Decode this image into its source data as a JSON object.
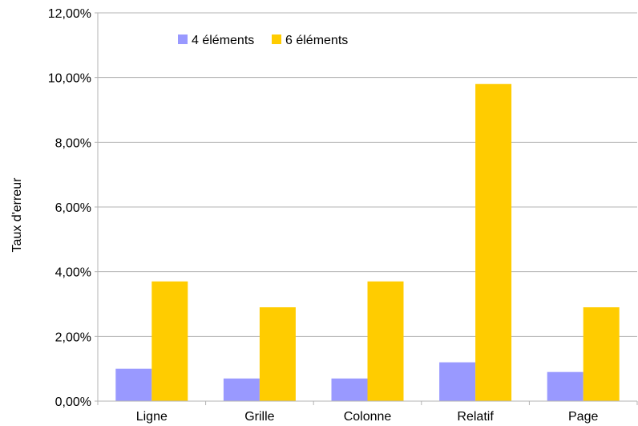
{
  "chart_data": {
    "type": "bar",
    "categories": [
      "Ligne",
      "Grille",
      "Colonne",
      "Relatif",
      "Page"
    ],
    "series": [
      {
        "name": "4 éléments",
        "values": [
          1.0,
          0.7,
          0.7,
          1.2,
          0.9
        ],
        "color": "#9999ff"
      },
      {
        "name": "6 éléments",
        "values": [
          3.7,
          2.9,
          3.7,
          9.8,
          2.9
        ],
        "color": "#ffcc00"
      }
    ],
    "title": "",
    "xlabel": "",
    "ylabel": "Taux d'erreur",
    "ylim": [
      0,
      12
    ],
    "yticks": [
      "0,00%",
      "2,00%",
      "4,00%",
      "6,00%",
      "8,00%",
      "10,00%",
      "12,00%"
    ],
    "grid": true,
    "legend_position": "top-left"
  }
}
